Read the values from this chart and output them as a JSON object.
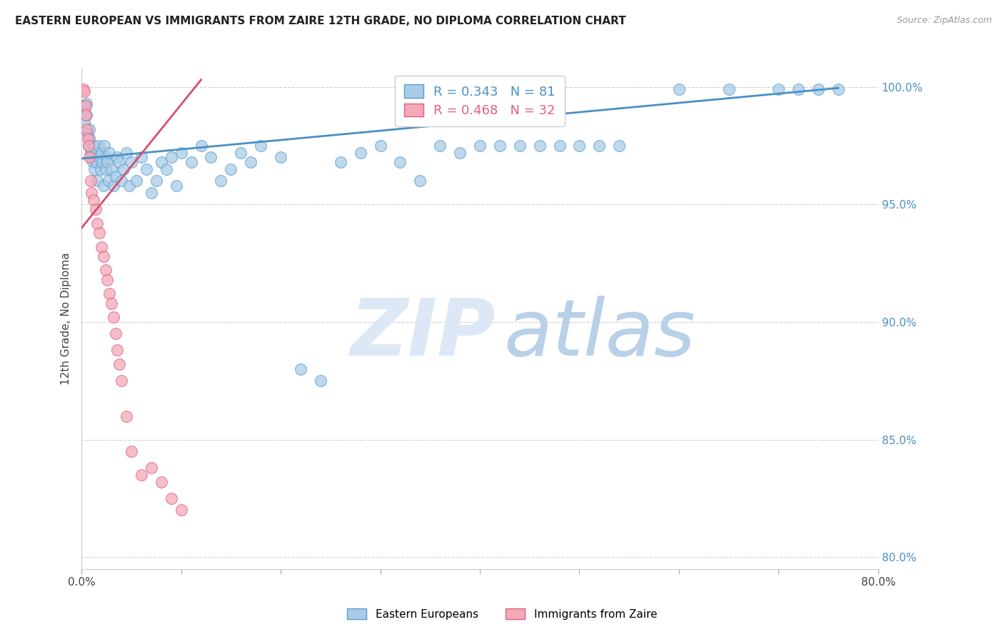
{
  "title": "EASTERN EUROPEAN VS IMMIGRANTS FROM ZAIRE 12TH GRADE, NO DIPLOMA CORRELATION CHART",
  "source": "Source: ZipAtlas.com",
  "ylabel": "12th Grade, No Diploma",
  "xlim": [
    0.0,
    0.8
  ],
  "ylim": [
    0.795,
    1.008
  ],
  "x_ticks": [
    0.0,
    0.1,
    0.2,
    0.3,
    0.4,
    0.5,
    0.6,
    0.7,
    0.8
  ],
  "x_tick_labels": [
    "0.0%",
    "",
    "",
    "",
    "",
    "",
    "",
    "",
    "80.0%"
  ],
  "y_ticks": [
    0.8,
    0.85,
    0.9,
    0.95,
    1.0
  ],
  "y_tick_labels": [
    "80.0%",
    "85.0%",
    "90.0%",
    "95.0%",
    "100.0%"
  ],
  "r_blue": 0.343,
  "n_blue": 81,
  "r_pink": 0.468,
  "n_pink": 32,
  "blue_color": "#a8cce8",
  "pink_color": "#f4a8b8",
  "blue_edge_color": "#5b9dc9",
  "pink_edge_color": "#e06080",
  "blue_line_color": "#4a90c4",
  "pink_line_color": "#d45070",
  "grid_color": "#d0d0d0",
  "blue_scatter_x": [
    0.002,
    0.003,
    0.004,
    0.005,
    0.005,
    0.006,
    0.007,
    0.008,
    0.008,
    0.009,
    0.01,
    0.011,
    0.012,
    0.013,
    0.014,
    0.015,
    0.016,
    0.017,
    0.018,
    0.019,
    0.02,
    0.021,
    0.022,
    0.023,
    0.024,
    0.025,
    0.026,
    0.027,
    0.028,
    0.03,
    0.032,
    0.034,
    0.036,
    0.038,
    0.04,
    0.042,
    0.045,
    0.048,
    0.05,
    0.055,
    0.06,
    0.065,
    0.07,
    0.075,
    0.08,
    0.085,
    0.09,
    0.095,
    0.1,
    0.11,
    0.12,
    0.13,
    0.14,
    0.15,
    0.16,
    0.17,
    0.18,
    0.2,
    0.22,
    0.24,
    0.26,
    0.28,
    0.3,
    0.32,
    0.34,
    0.36,
    0.38,
    0.4,
    0.42,
    0.44,
    0.46,
    0.48,
    0.5,
    0.52,
    0.54,
    0.6,
    0.65,
    0.7,
    0.72,
    0.74,
    0.76
  ],
  "blue_scatter_y": [
    0.99,
    0.985,
    0.992,
    0.988,
    0.993,
    0.98,
    0.975,
    0.982,
    0.978,
    0.972,
    0.97,
    0.968,
    0.975,
    0.965,
    0.972,
    0.968,
    0.96,
    0.975,
    0.97,
    0.965,
    0.972,
    0.968,
    0.958,
    0.975,
    0.965,
    0.97,
    0.968,
    0.96,
    0.972,
    0.965,
    0.958,
    0.962,
    0.97,
    0.968,
    0.96,
    0.965,
    0.972,
    0.958,
    0.968,
    0.96,
    0.97,
    0.965,
    0.955,
    0.96,
    0.968,
    0.965,
    0.97,
    0.958,
    0.972,
    0.968,
    0.975,
    0.97,
    0.96,
    0.965,
    0.972,
    0.968,
    0.975,
    0.97,
    0.88,
    0.875,
    0.968,
    0.972,
    0.975,
    0.968,
    0.96,
    0.975,
    0.972,
    0.975,
    0.975,
    0.975,
    0.975,
    0.975,
    0.975,
    0.975,
    0.975,
    0.999,
    0.999,
    0.999,
    0.999,
    0.999,
    0.999
  ],
  "pink_scatter_x": [
    0.002,
    0.003,
    0.004,
    0.004,
    0.005,
    0.006,
    0.007,
    0.008,
    0.009,
    0.01,
    0.012,
    0.014,
    0.016,
    0.018,
    0.02,
    0.022,
    0.024,
    0.026,
    0.028,
    0.03,
    0.032,
    0.034,
    0.036,
    0.038,
    0.04,
    0.045,
    0.05,
    0.06,
    0.07,
    0.08,
    0.09,
    0.1
  ],
  "pink_scatter_y": [
    0.999,
    0.998,
    0.992,
    0.988,
    0.982,
    0.978,
    0.975,
    0.97,
    0.96,
    0.955,
    0.952,
    0.948,
    0.942,
    0.938,
    0.932,
    0.928,
    0.922,
    0.918,
    0.912,
    0.908,
    0.902,
    0.895,
    0.888,
    0.882,
    0.875,
    0.86,
    0.845,
    0.835,
    0.838,
    0.832,
    0.825,
    0.82
  ],
  "blue_line_x_start": 0.0,
  "blue_line_x_end": 0.76,
  "pink_line_x_start": 0.0,
  "pink_line_x_end": 0.12
}
